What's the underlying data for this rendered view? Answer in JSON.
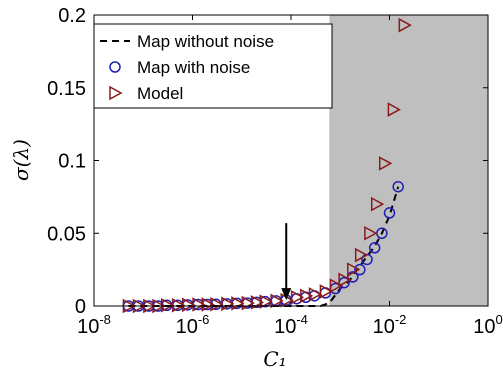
{
  "chart_data": {
    "type": "scatter",
    "xscale": "log",
    "xlim": [
      1e-08,
      1
    ],
    "ylim": [
      0,
      0.2
    ],
    "xlabel": "C₁",
    "ylabel": "σ(λ)",
    "x_ticks": [
      {
        "value": 1e-08,
        "base": "10",
        "exp": "-8"
      },
      {
        "value": 1e-06,
        "base": "10",
        "exp": "-6"
      },
      {
        "value": 0.0001,
        "base": "10",
        "exp": "-4"
      },
      {
        "value": 0.01,
        "base": "10",
        "exp": "-2"
      },
      {
        "value": 1,
        "base": "10",
        "exp": "0"
      }
    ],
    "y_ticks": [
      {
        "value": 0,
        "label": "0"
      },
      {
        "value": 0.05,
        "label": "0.05"
      },
      {
        "value": 0.1,
        "label": "0.1"
      },
      {
        "value": 0.15,
        "label": "0.15"
      },
      {
        "value": 0.2,
        "label": "0.2"
      }
    ],
    "shaded_region": {
      "x_from": 0.0006,
      "x_to": 1,
      "color": "#bfbfbf"
    },
    "arrow": {
      "x": 8e-05,
      "y_from": 0.057,
      "y_to": 0.004
    },
    "legend_position": "top-left",
    "series": [
      {
        "name": "Map without noise",
        "style": "dashed-line",
        "color": "#000000",
        "x": [
          5e-08,
          1e-07,
          2e-07,
          5e-07,
          1e-06,
          2e-06,
          5e-06,
          1e-05,
          2e-05,
          5e-05,
          0.0001,
          0.0002,
          0.0004,
          0.0006,
          0.001,
          0.0015,
          0.002,
          0.003,
          0.005,
          0.007,
          0.01,
          0.015
        ],
        "y": [
          0.0,
          0.0,
          0.0,
          0.0,
          0.0,
          0.0,
          0.0,
          0.0,
          0.0,
          0.0,
          0.0,
          0.0,
          0.0,
          0.002,
          0.012,
          0.017,
          0.023,
          0.031,
          0.041,
          0.05,
          0.062,
          0.082
        ]
      },
      {
        "name": "Map with noise",
        "style": "circle",
        "color": "#1f1fb4",
        "x": [
          5e-08,
          8e-08,
          1.3e-07,
          2e-07,
          3e-07,
          5e-07,
          8e-07,
          1.3e-06,
          2e-06,
          3e-06,
          5e-06,
          8e-06,
          1.3e-05,
          2e-05,
          3e-05,
          5e-05,
          8e-05,
          0.00013,
          0.0002,
          0.0003,
          0.0005,
          0.0008,
          0.0012,
          0.0018,
          0.0025,
          0.0035,
          0.005,
          0.007,
          0.01,
          0.015
        ],
        "y": [
          0.0,
          0.0,
          0.0,
          0.0,
          0.0005,
          0.0005,
          0.0008,
          0.001,
          0.001,
          0.0012,
          0.0015,
          0.0018,
          0.002,
          0.0025,
          0.003,
          0.0035,
          0.004,
          0.005,
          0.006,
          0.007,
          0.009,
          0.012,
          0.016,
          0.02,
          0.025,
          0.032,
          0.04,
          0.05,
          0.064,
          0.082
        ]
      },
      {
        "name": "Model",
        "style": "triangle-right",
        "color": "#8b1a1a",
        "x": [
          5e-08,
          8e-08,
          1.3e-07,
          2e-07,
          3e-07,
          5e-07,
          8e-07,
          1.3e-06,
          2e-06,
          3e-06,
          5e-06,
          8e-06,
          1.3e-05,
          2e-05,
          3e-05,
          5e-05,
          8e-05,
          0.00013,
          0.0002,
          0.0003,
          0.0005,
          0.0008,
          0.0012,
          0.0018,
          0.0026,
          0.004,
          0.0055,
          0.008,
          0.012,
          0.02
        ],
        "y": [
          0.0,
          0.0,
          0.0,
          0.0,
          0.0005,
          0.0005,
          0.0008,
          0.001,
          0.001,
          0.0012,
          0.0015,
          0.0018,
          0.002,
          0.0025,
          0.003,
          0.0035,
          0.004,
          0.006,
          0.007,
          0.008,
          0.01,
          0.014,
          0.018,
          0.025,
          0.035,
          0.05,
          0.07,
          0.098,
          0.135,
          0.193
        ]
      }
    ]
  }
}
